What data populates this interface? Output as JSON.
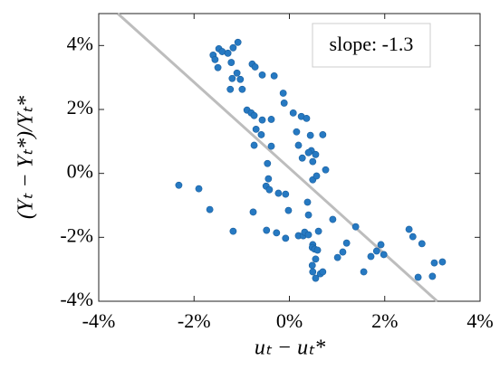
{
  "chart_data": {
    "type": "scatter",
    "xlabel": "uₜ − uₜ*",
    "ylabel": "(Yₜ − Yₜ*)/Yₜ*",
    "annotation": "slope: -1.3",
    "color": "#2679c2",
    "x": [
      -2.32,
      -1.9,
      -1.67,
      -1.18,
      -1.6,
      -1.48,
      -1.41,
      -1.56,
      -1.5,
      -1.29,
      -1.18,
      -1.08,
      -1.22,
      -1.1,
      -1.2,
      -1.03,
      -1.24,
      -0.99,
      -0.78,
      -0.72,
      -0.57,
      -0.32,
      -0.89,
      -0.8,
      -0.74,
      -0.57,
      -0.38,
      -0.7,
      -0.59,
      -0.74,
      -0.38,
      -0.46,
      -0.13,
      -0.11,
      0.08,
      0.25,
      0.36,
      0.15,
      0.19,
      0.44,
      0.7,
      0.46,
      0.4,
      0.49,
      0.55,
      0.27,
      0.76,
      0.49,
      0.57,
      -0.44,
      -0.49,
      -0.42,
      -0.23,
      -0.08,
      -0.02,
      0.38,
      0.4,
      -0.76,
      -0.48,
      -0.27,
      -0.08,
      0.19,
      0.29,
      0.32,
      0.4,
      0.61,
      0.49,
      0.48,
      0.53,
      0.59,
      0.55,
      0.48,
      0.49,
      0.55,
      0.65,
      0.7,
      0.91,
      1.01,
      1.12,
      1.2,
      1.39,
      1.56,
      1.71,
      1.83,
      1.92,
      1.98,
      2.51,
      2.59,
      2.78,
      2.7,
      3.0,
      3.04,
      3.21
    ],
    "values": [
      -0.37,
      -0.48,
      -1.13,
      -1.81,
      3.7,
      3.9,
      3.81,
      3.56,
      3.31,
      3.76,
      3.93,
      4.1,
      3.47,
      3.14,
      2.97,
      2.94,
      2.63,
      2.63,
      3.42,
      3.33,
      3.08,
      3.05,
      1.98,
      1.89,
      1.81,
      1.67,
      1.69,
      1.38,
      1.21,
      0.88,
      0.85,
      0.31,
      2.51,
      2.2,
      1.89,
      1.78,
      1.72,
      1.3,
      0.88,
      1.19,
      1.21,
      0.71,
      0.65,
      0.37,
      0.59,
      0.48,
      0.11,
      -0.2,
      -0.08,
      -0.17,
      -0.4,
      -0.51,
      -0.62,
      -0.65,
      -1.16,
      -0.9,
      -1.3,
      -1.21,
      -1.78,
      -1.86,
      -2.03,
      -1.95,
      -1.95,
      -1.84,
      -1.92,
      -1.81,
      -2.23,
      -2.32,
      -2.37,
      -2.4,
      -2.68,
      -2.88,
      -3.08,
      -3.28,
      -3.14,
      -3.08,
      -1.44,
      -2.63,
      -2.46,
      -2.18,
      -1.67,
      -3.08,
      -2.6,
      -2.43,
      -2.23,
      -2.54,
      -1.75,
      -1.98,
      -2.2,
      -3.25,
      -3.22,
      -2.8,
      -2.77
    ],
    "fit_line": {
      "x": [
        -3.6,
        3.1
      ],
      "values": [
        5,
        -4
      ],
      "color": "#bdbdbd"
    },
    "xlim": [
      -4,
      4
    ],
    "ylim": [
      -4,
      5
    ],
    "xticks": [
      {
        "value": -4,
        "label": "-4%"
      },
      {
        "value": -2,
        "label": "-2%"
      },
      {
        "value": 0,
        "label": "0%"
      },
      {
        "value": 2,
        "label": "2%"
      },
      {
        "value": 4,
        "label": "4%"
      }
    ],
    "yticks": [
      {
        "value": -4,
        "label": "-4%"
      },
      {
        "value": -2,
        "label": "-2%"
      },
      {
        "value": 0,
        "label": "0%"
      },
      {
        "value": 2,
        "label": "2%"
      },
      {
        "value": 4,
        "label": "4%"
      }
    ],
    "grid": false
  }
}
